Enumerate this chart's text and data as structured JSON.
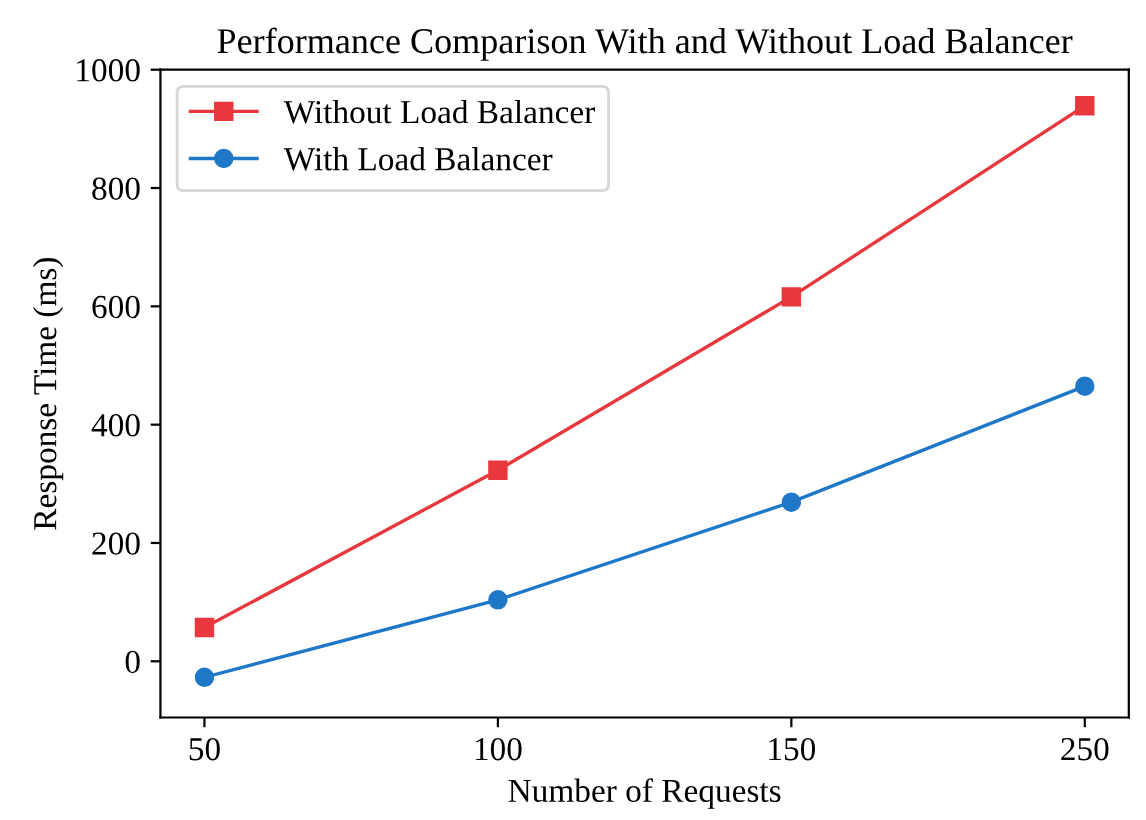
{
  "chart_data": {
    "type": "line",
    "title": "Performance Comparison With and Without Load Balancer",
    "xlabel": "Number of Requests",
    "ylabel": "Response Time (ms)",
    "categories": [
      "50",
      "100",
      "150",
      "250"
    ],
    "series": [
      {
        "name": "Without Load Balancer",
        "color": "#e8383d",
        "marker": "square",
        "values": [
          57,
          323,
          616,
          939
        ]
      },
      {
        "name": "With Load Balancer",
        "color": "#1f77c8",
        "marker": "circle",
        "values": [
          -27,
          104,
          269,
          465
        ]
      }
    ],
    "ylim": [
      -95,
      1000
    ],
    "yticks": [
      0,
      200,
      400,
      600,
      800,
      1000
    ],
    "grid": false,
    "legend": "top left",
    "line_style": "solid"
  }
}
